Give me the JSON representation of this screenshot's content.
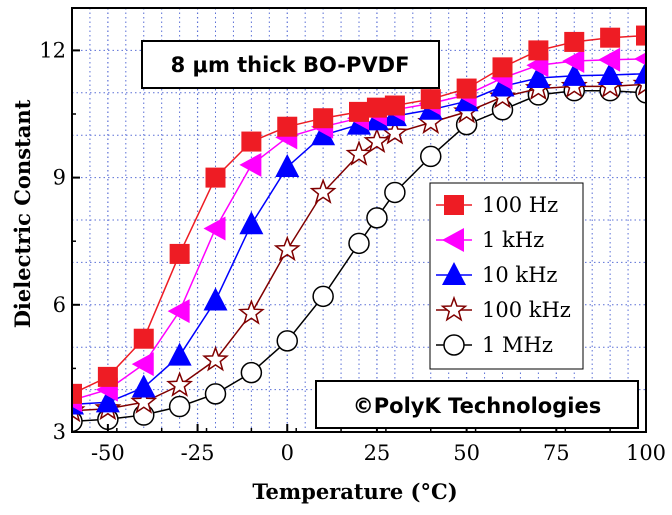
{
  "chart_data": {
    "type": "line",
    "title": "8 μm thick BO-PVDF",
    "xlabel": "Temperature (°C)",
    "ylabel": "Dielectric Constant",
    "xlim": [
      -60,
      100
    ],
    "ylim": [
      3,
      13
    ],
    "xticks": [
      -50,
      -25,
      0,
      25,
      50,
      75,
      100
    ],
    "xtick_labels": [
      "-50",
      "-25",
      "0",
      "25",
      "50",
      "75",
      "100"
    ],
    "yticks": [
      3,
      6,
      9,
      12
    ],
    "ytick_labels": [
      "3",
      "6",
      "9",
      "12"
    ],
    "grid": true,
    "legend_position": "right-middle",
    "watermark": "©PolyK Technologies",
    "series": [
      {
        "name": "100 Hz",
        "color": "#ee1c24",
        "marker": "square",
        "x": [
          -60,
          -50,
          -40,
          -30,
          -20,
          -10,
          0,
          10,
          20,
          25,
          30,
          40,
          50,
          60,
          70,
          80,
          90,
          100
        ],
        "y": [
          3.9,
          4.3,
          5.2,
          7.2,
          9.0,
          9.85,
          10.2,
          10.4,
          10.55,
          10.65,
          10.7,
          10.85,
          11.1,
          11.6,
          12.0,
          12.2,
          12.3,
          12.35
        ]
      },
      {
        "name": "1 kHz",
        "color": "#ff00ff",
        "marker": "triangle-left",
        "x": [
          -60,
          -50,
          -40,
          -30,
          -20,
          -10,
          0,
          10,
          20,
          25,
          30,
          40,
          50,
          60,
          70,
          80,
          90,
          100
        ],
        "y": [
          3.75,
          4.0,
          4.6,
          5.85,
          7.8,
          9.3,
          9.95,
          10.2,
          10.4,
          10.5,
          10.6,
          10.75,
          10.95,
          11.35,
          11.65,
          11.75,
          11.78,
          11.8
        ]
      },
      {
        "name": "10 kHz",
        "color": "#0000ff",
        "marker": "triangle-up",
        "x": [
          -60,
          -50,
          -40,
          -30,
          -20,
          -10,
          0,
          10,
          20,
          25,
          30,
          40,
          50,
          60,
          70,
          80,
          90,
          100
        ],
        "y": [
          3.65,
          3.7,
          4.05,
          4.8,
          6.1,
          7.9,
          9.25,
          10.0,
          10.25,
          10.35,
          10.45,
          10.6,
          10.8,
          11.15,
          11.35,
          11.4,
          11.42,
          11.45
        ]
      },
      {
        "name": "100 kHz",
        "color": "#800000",
        "marker": "star",
        "x": [
          -60,
          -50,
          -40,
          -30,
          -20,
          -10,
          0,
          10,
          20,
          25,
          30,
          40,
          50,
          60,
          70,
          80,
          90,
          100
        ],
        "y": [
          3.5,
          3.55,
          3.7,
          4.1,
          4.7,
          5.8,
          7.3,
          8.65,
          9.55,
          9.85,
          10.05,
          10.3,
          10.55,
          10.9,
          11.1,
          11.15,
          11.15,
          11.2
        ]
      },
      {
        "name": "1 MHz",
        "color": "#000000",
        "marker": "circle",
        "x": [
          -60,
          -50,
          -40,
          -30,
          -20,
          -10,
          0,
          10,
          20,
          25,
          30,
          40,
          50,
          60,
          70,
          80,
          90,
          100
        ],
        "y": [
          3.25,
          3.3,
          3.4,
          3.6,
          3.9,
          4.4,
          5.15,
          6.2,
          7.45,
          8.05,
          8.65,
          9.5,
          10.25,
          10.6,
          10.95,
          11.05,
          11.05,
          11.0
        ]
      }
    ]
  }
}
